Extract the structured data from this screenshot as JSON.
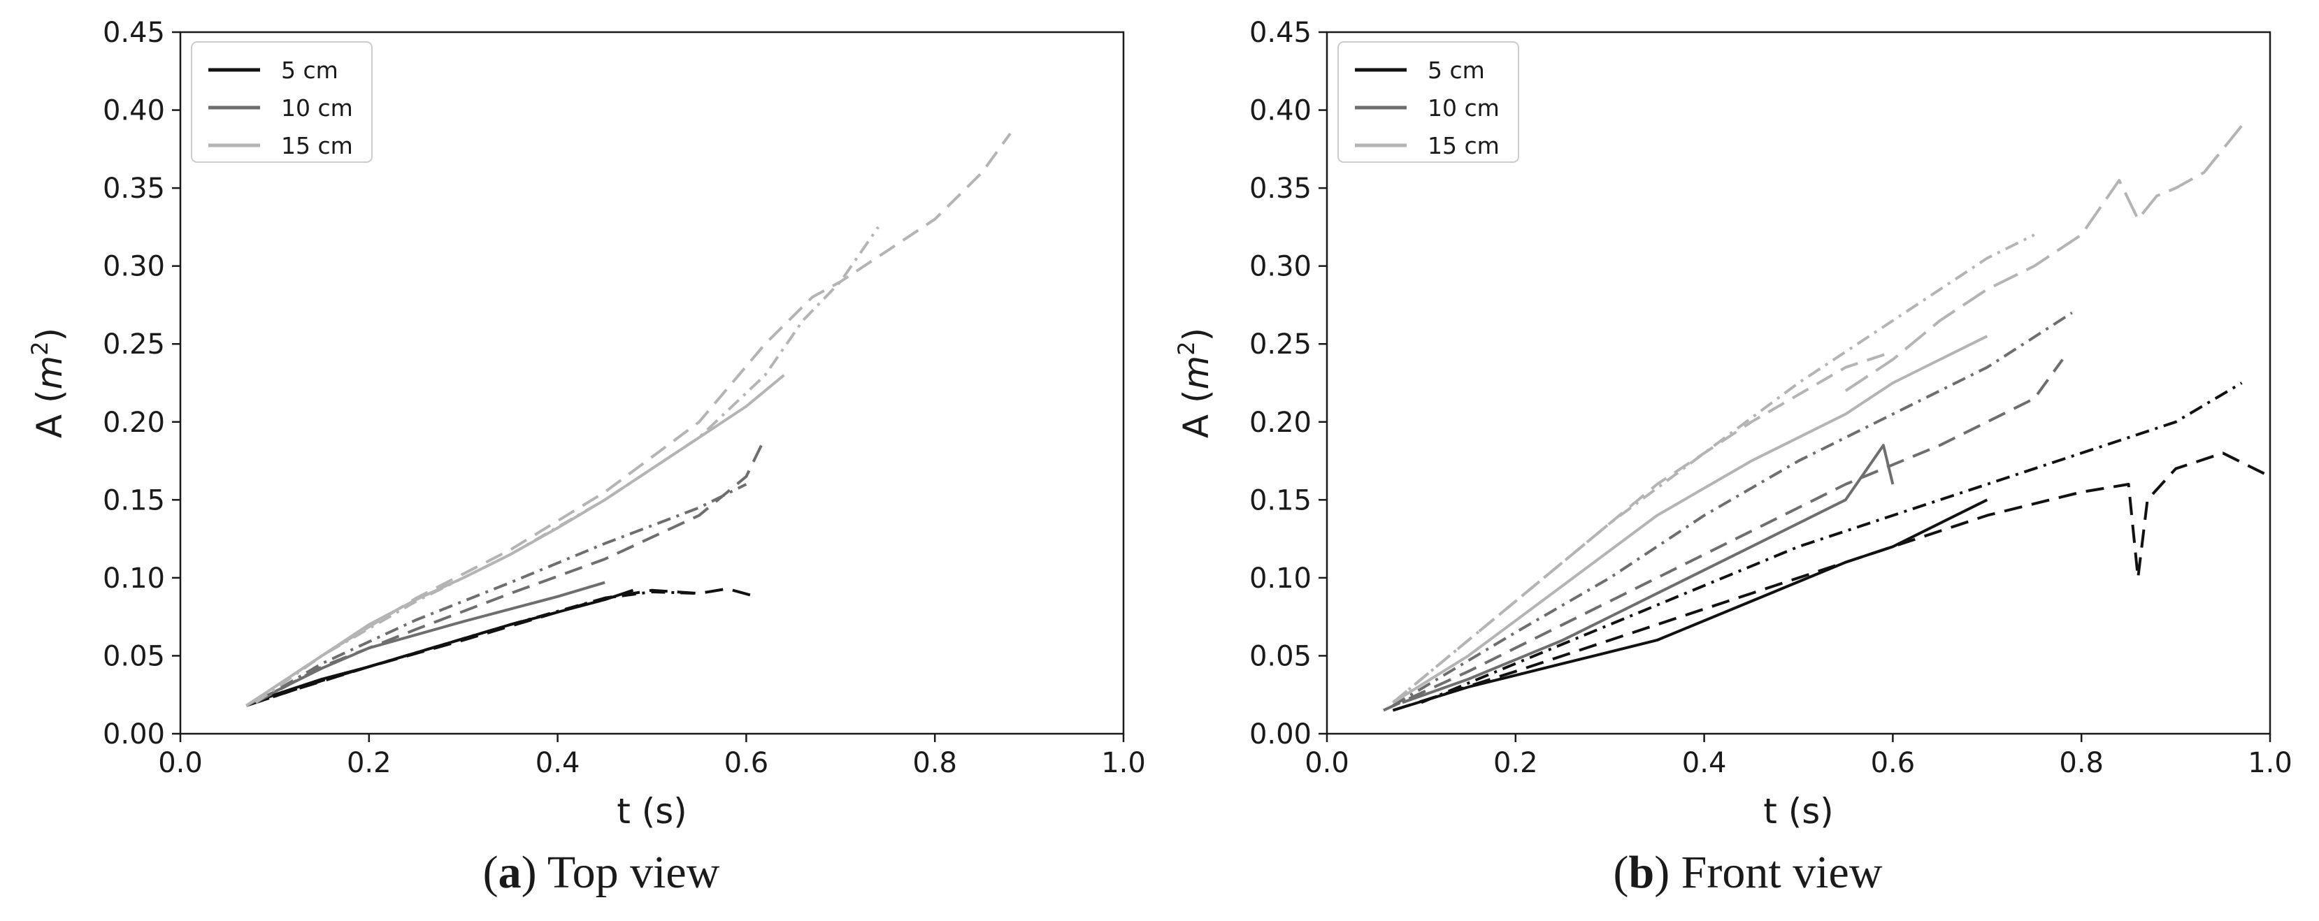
{
  "chart_data": [
    {
      "type": "line",
      "panel": "a",
      "caption_letter": "a",
      "caption_text": "Top view",
      "xlabel": "t (s)",
      "ylabel_main": "A (",
      "ylabel_var": "m",
      "ylabel_sup": "2",
      "ylabel_close": ")",
      "xlim": [
        0.0,
        1.0
      ],
      "ylim": [
        0.0,
        0.45
      ],
      "xticks": [
        "0.0",
        "0.2",
        "0.4",
        "0.6",
        "0.8",
        "1.0"
      ],
      "yticks": [
        "0.00",
        "0.05",
        "0.10",
        "0.15",
        "0.20",
        "0.25",
        "0.30",
        "0.35",
        "0.40",
        "0.45"
      ],
      "legend": [
        {
          "label": "5 cm",
          "color": "#111111"
        },
        {
          "label": "10 cm",
          "color": "#6e6e6e"
        },
        {
          "label": "15 cm",
          "color": "#b4b4b4"
        }
      ],
      "legend_position": "top-left",
      "series": [
        {
          "name": "5 cm",
          "color": "#111111",
          "dash": "solid",
          "x": [
            0.07,
            0.1,
            0.15,
            0.2,
            0.25,
            0.3,
            0.35,
            0.4,
            0.45,
            0.48
          ],
          "y": [
            0.018,
            0.025,
            0.035,
            0.043,
            0.052,
            0.061,
            0.07,
            0.078,
            0.086,
            0.092
          ]
        },
        {
          "name": "5 cm",
          "color": "#111111",
          "dash": "dashed",
          "x": [
            0.07,
            0.12,
            0.2,
            0.3,
            0.4,
            0.45,
            0.5,
            0.55,
            0.58,
            0.61
          ],
          "y": [
            0.018,
            0.028,
            0.043,
            0.06,
            0.078,
            0.087,
            0.092,
            0.09,
            0.093,
            0.088
          ]
        },
        {
          "name": "5 cm",
          "color": "#111111",
          "dash": "dashdot",
          "x": [
            0.08,
            0.15,
            0.25,
            0.35,
            0.45,
            0.5,
            0.55
          ],
          "y": [
            0.02,
            0.034,
            0.052,
            0.07,
            0.087,
            0.091,
            0.09
          ]
        },
        {
          "name": "10 cm",
          "color": "#6e6e6e",
          "dash": "solid",
          "x": [
            0.07,
            0.1,
            0.15,
            0.2,
            0.3,
            0.4,
            0.45
          ],
          "y": [
            0.018,
            0.027,
            0.042,
            0.055,
            0.072,
            0.088,
            0.097
          ]
        },
        {
          "name": "10 cm",
          "color": "#6e6e6e",
          "dash": "dashed",
          "x": [
            0.08,
            0.15,
            0.25,
            0.35,
            0.45,
            0.55,
            0.6,
            0.62
          ],
          "y": [
            0.02,
            0.043,
            0.067,
            0.09,
            0.112,
            0.14,
            0.165,
            0.19
          ]
        },
        {
          "name": "10 cm",
          "color": "#6e6e6e",
          "dash": "dashdot",
          "x": [
            0.08,
            0.15,
            0.25,
            0.35,
            0.45,
            0.55,
            0.6
          ],
          "y": [
            0.02,
            0.045,
            0.073,
            0.097,
            0.122,
            0.145,
            0.16
          ]
        },
        {
          "name": "15 cm",
          "color": "#b4b4b4",
          "dash": "solid",
          "x": [
            0.07,
            0.1,
            0.15,
            0.2,
            0.25,
            0.3,
            0.35,
            0.4,
            0.45,
            0.5,
            0.55,
            0.6,
            0.62,
            0.64
          ],
          "y": [
            0.018,
            0.03,
            0.05,
            0.07,
            0.086,
            0.1,
            0.115,
            0.132,
            0.15,
            0.17,
            0.19,
            0.21,
            0.22,
            0.23
          ]
        },
        {
          "name": "15 cm",
          "color": "#b4b4b4",
          "dash": "dashed",
          "x": [
            0.07,
            0.15,
            0.25,
            0.35,
            0.45,
            0.55,
            0.62,
            0.67,
            0.7,
            0.75,
            0.8,
            0.85,
            0.88
          ],
          "y": [
            0.018,
            0.05,
            0.087,
            0.118,
            0.155,
            0.2,
            0.25,
            0.28,
            0.29,
            0.31,
            0.33,
            0.36,
            0.385
          ]
        },
        {
          "name": "15 cm",
          "color": "#b4b4b4",
          "dash": "dashdot",
          "x": [
            0.08,
            0.15,
            0.25,
            0.35,
            0.45,
            0.55,
            0.62,
            0.66,
            0.7,
            0.74
          ],
          "y": [
            0.02,
            0.05,
            0.085,
            0.115,
            0.15,
            0.19,
            0.23,
            0.265,
            0.29,
            0.325
          ]
        }
      ]
    },
    {
      "type": "line",
      "panel": "b",
      "caption_letter": "b",
      "caption_text": "Front view",
      "xlabel": "t (s)",
      "ylabel_main": "A (",
      "ylabel_var": "m",
      "ylabel_sup": "2",
      "ylabel_close": ")",
      "xlim": [
        0.0,
        1.0
      ],
      "ylim": [
        0.0,
        0.45
      ],
      "xticks": [
        "0.0",
        "0.2",
        "0.4",
        "0.6",
        "0.8",
        "1.0"
      ],
      "yticks": [
        "0.00",
        "0.05",
        "0.10",
        "0.15",
        "0.20",
        "0.25",
        "0.30",
        "0.35",
        "0.40",
        "0.45"
      ],
      "legend": [
        {
          "label": "5 cm",
          "color": "#111111"
        },
        {
          "label": "10 cm",
          "color": "#6e6e6e"
        },
        {
          "label": "15 cm",
          "color": "#b4b4b4"
        }
      ],
      "legend_position": "top-left",
      "series": [
        {
          "name": "5 cm",
          "color": "#111111",
          "dash": "solid",
          "x": [
            0.07,
            0.15,
            0.25,
            0.35,
            0.45,
            0.55,
            0.6,
            0.65,
            0.7
          ],
          "y": [
            0.015,
            0.03,
            0.045,
            0.06,
            0.085,
            0.11,
            0.12,
            0.135,
            0.15
          ]
        },
        {
          "name": "5 cm",
          "color": "#111111",
          "dash": "dashed",
          "x": [
            0.07,
            0.2,
            0.3,
            0.4,
            0.5,
            0.6,
            0.7,
            0.8,
            0.85,
            0.86,
            0.87,
            0.9,
            0.95,
            1.0
          ],
          "y": [
            0.015,
            0.04,
            0.06,
            0.08,
            0.1,
            0.12,
            0.14,
            0.155,
            0.16,
            0.1,
            0.15,
            0.17,
            0.18,
            0.165
          ]
        },
        {
          "name": "5 cm",
          "color": "#111111",
          "dash": "dashdot",
          "x": [
            0.1,
            0.2,
            0.3,
            0.4,
            0.5,
            0.6,
            0.7,
            0.8,
            0.9,
            0.97
          ],
          "y": [
            0.02,
            0.045,
            0.07,
            0.095,
            0.12,
            0.14,
            0.16,
            0.18,
            0.2,
            0.225
          ]
        },
        {
          "name": "10 cm",
          "color": "#6e6e6e",
          "dash": "solid",
          "x": [
            0.08,
            0.15,
            0.25,
            0.35,
            0.45,
            0.55,
            0.59,
            0.6
          ],
          "y": [
            0.02,
            0.035,
            0.06,
            0.09,
            0.12,
            0.15,
            0.185,
            0.16
          ]
        },
        {
          "name": "10 cm",
          "color": "#6e6e6e",
          "dash": "dashed",
          "x": [
            0.06,
            0.15,
            0.25,
            0.35,
            0.45,
            0.55,
            0.65,
            0.7,
            0.75,
            0.78
          ],
          "y": [
            0.015,
            0.04,
            0.07,
            0.1,
            0.13,
            0.16,
            0.185,
            0.2,
            0.215,
            0.24
          ]
        },
        {
          "name": "10 cm",
          "color": "#6e6e6e",
          "dash": "dashdot",
          "x": [
            0.07,
            0.2,
            0.3,
            0.4,
            0.5,
            0.6,
            0.7,
            0.79
          ],
          "y": [
            0.018,
            0.065,
            0.1,
            0.14,
            0.175,
            0.205,
            0.235,
            0.27
          ]
        },
        {
          "name": "15 cm",
          "color": "#b4b4b4",
          "dash": "solid",
          "x": [
            0.07,
            0.15,
            0.25,
            0.35,
            0.45,
            0.55,
            0.6,
            0.65,
            0.7
          ],
          "y": [
            0.02,
            0.05,
            0.095,
            0.14,
            0.175,
            0.205,
            0.225,
            0.24,
            0.255
          ]
        },
        {
          "name": "15 cm",
          "color": "#b4b4b4",
          "dash": "dashed",
          "x": [
            0.07,
            0.15,
            0.25,
            0.35,
            0.45,
            0.55,
            0.6
          ],
          "y": [
            0.02,
            0.06,
            0.11,
            0.16,
            0.2,
            0.235,
            0.245
          ]
        },
        {
          "name": "15 cm",
          "color": "#b4b4b4",
          "dash": "dashdot",
          "x": [
            0.07,
            0.2,
            0.3,
            0.4,
            0.5,
            0.6,
            0.7,
            0.75
          ],
          "y": [
            0.02,
            0.085,
            0.135,
            0.18,
            0.225,
            0.265,
            0.305,
            0.32
          ]
        },
        {
          "name": "15 cm",
          "color": "#b4b4b4",
          "dash": "longdash",
          "x": [
            0.55,
            0.6,
            0.65,
            0.7,
            0.75,
            0.8,
            0.84,
            0.86,
            0.88,
            0.9,
            0.93,
            0.97
          ],
          "y": [
            0.22,
            0.24,
            0.265,
            0.285,
            0.3,
            0.32,
            0.355,
            0.33,
            0.345,
            0.35,
            0.36,
            0.39
          ]
        }
      ]
    }
  ]
}
